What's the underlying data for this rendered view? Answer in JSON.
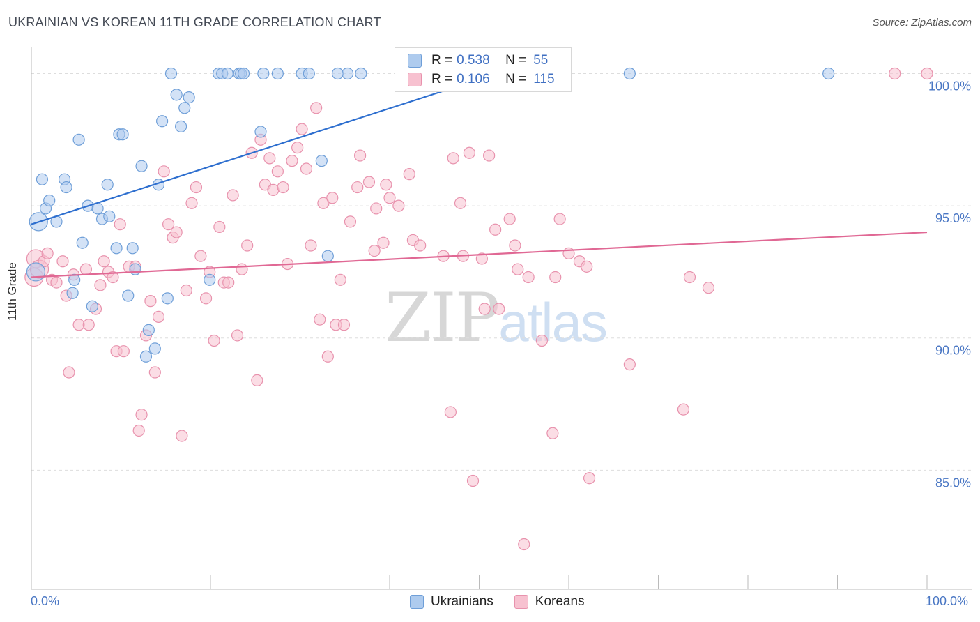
{
  "title": "UKRAINIAN VS KOREAN 11TH GRADE CORRELATION CHART",
  "source": "Source: ZipAtlas.com",
  "watermark": {
    "zip": "ZIP",
    "atlas": "atlas"
  },
  "colors": {
    "blue_fill": "#aecbee",
    "blue_stroke": "#6f9fd8",
    "blue_line": "#2e6fcf",
    "pink_fill": "#f7c1d0",
    "pink_stroke": "#e892ad",
    "pink_line": "#e06894",
    "grid": "#dddddd",
    "tick_label": "#4a77c4"
  },
  "legend": {
    "rows": [
      {
        "r_label": "R =",
        "r_value": "0.538",
        "n_label": "N =",
        "n_value": "55",
        "color": "#aecbee"
      },
      {
        "r_label": "R =",
        "r_value": "0.106",
        "n_label": "N =",
        "n_value": "115",
        "color": "#f7c1d0"
      }
    ],
    "bottom": [
      {
        "label": "Ukrainians",
        "color": "#aecbee"
      },
      {
        "label": "Koreans",
        "color": "#f7c1d0"
      }
    ]
  },
  "chart_data": {
    "type": "scatter",
    "title": "UKRAINIAN VS KOREAN 11TH GRADE CORRELATION CHART",
    "xlabel": "",
    "ylabel": "11th Grade",
    "xlim": [
      0,
      100
    ],
    "ylim": [
      80.5,
      101.2
    ],
    "x_tick_labels": [
      "0.0%",
      "100.0%"
    ],
    "y_ticks": [
      85,
      90,
      95,
      100
    ],
    "y_tick_labels": [
      "85.0%",
      "90.0%",
      "95.0%",
      "100.0%"
    ],
    "grid": true,
    "series": [
      {
        "name": "Ukrainians",
        "trend": {
          "x0": 0,
          "y0": 94.3,
          "x1": 52,
          "y1": 100.0
        },
        "points": [
          [
            0.5,
            92.5
          ],
          [
            0.8,
            94.4
          ],
          [
            1.2,
            96.0
          ],
          [
            1.6,
            94.9
          ],
          [
            2.0,
            95.2
          ],
          [
            2.8,
            94.4
          ],
          [
            3.7,
            96.0
          ],
          [
            3.9,
            95.7
          ],
          [
            4.6,
            91.7
          ],
          [
            4.8,
            92.2
          ],
          [
            5.3,
            97.5
          ],
          [
            5.7,
            93.6
          ],
          [
            6.3,
            95.0
          ],
          [
            6.8,
            91.2
          ],
          [
            7.4,
            94.9
          ],
          [
            7.9,
            94.5
          ],
          [
            8.5,
            95.8
          ],
          [
            8.7,
            94.6
          ],
          [
            9.5,
            93.4
          ],
          [
            9.8,
            97.7
          ],
          [
            10.2,
            97.7
          ],
          [
            10.8,
            91.6
          ],
          [
            11.3,
            93.4
          ],
          [
            11.6,
            92.6
          ],
          [
            12.3,
            96.5
          ],
          [
            12.8,
            89.3
          ],
          [
            13.1,
            90.3
          ],
          [
            13.8,
            89.6
          ],
          [
            14.2,
            95.8
          ],
          [
            14.6,
            98.2
          ],
          [
            15.2,
            91.5
          ],
          [
            15.6,
            100.0
          ],
          [
            16.2,
            99.2
          ],
          [
            16.7,
            98.0
          ],
          [
            17.1,
            98.7
          ],
          [
            17.6,
            99.1
          ],
          [
            19.9,
            92.2
          ],
          [
            20.9,
            100.0
          ],
          [
            21.3,
            100.0
          ],
          [
            21.9,
            100.0
          ],
          [
            23.2,
            100.0
          ],
          [
            23.4,
            100.0
          ],
          [
            23.7,
            100.0
          ],
          [
            25.6,
            97.8
          ],
          [
            25.9,
            100.0
          ],
          [
            27.5,
            100.0
          ],
          [
            30.2,
            100.0
          ],
          [
            31.0,
            100.0
          ],
          [
            32.4,
            96.7
          ],
          [
            33.1,
            93.1
          ],
          [
            34.2,
            100.0
          ],
          [
            35.3,
            100.0
          ],
          [
            36.8,
            100.0
          ],
          [
            66.8,
            100.0
          ],
          [
            89.0,
            100.0
          ]
        ]
      },
      {
        "name": "Koreans",
        "trend": {
          "x0": 0,
          "y0": 92.3,
          "x1": 100,
          "y1": 94.0
        },
        "points": [
          [
            0.3,
            92.3
          ],
          [
            0.5,
            93.0
          ],
          [
            0.9,
            92.6
          ],
          [
            1.4,
            92.9
          ],
          [
            1.8,
            93.2
          ],
          [
            2.3,
            92.2
          ],
          [
            2.8,
            92.1
          ],
          [
            3.5,
            92.9
          ],
          [
            3.9,
            91.6
          ],
          [
            4.2,
            88.7
          ],
          [
            4.7,
            92.4
          ],
          [
            5.3,
            90.5
          ],
          [
            6.1,
            92.6
          ],
          [
            6.4,
            90.5
          ],
          [
            7.2,
            91.1
          ],
          [
            7.7,
            92.0
          ],
          [
            8.1,
            92.9
          ],
          [
            8.6,
            92.5
          ],
          [
            9.1,
            92.3
          ],
          [
            9.5,
            89.5
          ],
          [
            9.9,
            94.3
          ],
          [
            10.3,
            89.5
          ],
          [
            10.9,
            92.7
          ],
          [
            11.6,
            92.7
          ],
          [
            12.0,
            86.5
          ],
          [
            12.3,
            87.1
          ],
          [
            12.8,
            90.1
          ],
          [
            13.3,
            91.4
          ],
          [
            13.8,
            88.7
          ],
          [
            14.2,
            90.8
          ],
          [
            14.8,
            96.3
          ],
          [
            15.3,
            94.3
          ],
          [
            15.8,
            93.8
          ],
          [
            16.2,
            94.0
          ],
          [
            16.8,
            86.3
          ],
          [
            17.3,
            91.8
          ],
          [
            17.9,
            95.1
          ],
          [
            18.4,
            95.7
          ],
          [
            18.9,
            93.1
          ],
          [
            19.5,
            91.5
          ],
          [
            19.9,
            92.5
          ],
          [
            20.4,
            89.9
          ],
          [
            21.0,
            94.2
          ],
          [
            21.5,
            92.1
          ],
          [
            22.0,
            92.1
          ],
          [
            22.5,
            95.4
          ],
          [
            23.0,
            90.1
          ],
          [
            23.5,
            92.6
          ],
          [
            24.1,
            93.5
          ],
          [
            24.6,
            97.0
          ],
          [
            25.2,
            88.4
          ],
          [
            25.6,
            97.5
          ],
          [
            26.1,
            95.8
          ],
          [
            26.6,
            96.8
          ],
          [
            27.0,
            95.6
          ],
          [
            27.5,
            96.3
          ],
          [
            28.1,
            95.7
          ],
          [
            28.6,
            92.8
          ],
          [
            29.1,
            96.7
          ],
          [
            29.7,
            97.2
          ],
          [
            30.2,
            97.9
          ],
          [
            30.7,
            96.4
          ],
          [
            31.2,
            93.5
          ],
          [
            31.8,
            98.7
          ],
          [
            32.2,
            90.7
          ],
          [
            32.6,
            95.1
          ],
          [
            33.1,
            89.3
          ],
          [
            33.6,
            95.3
          ],
          [
            34.0,
            90.5
          ],
          [
            34.5,
            92.2
          ],
          [
            34.9,
            90.5
          ],
          [
            35.6,
            94.4
          ],
          [
            36.4,
            95.7
          ],
          [
            36.7,
            96.9
          ],
          [
            37.7,
            95.9
          ],
          [
            38.3,
            93.3
          ],
          [
            38.5,
            94.9
          ],
          [
            39.3,
            93.6
          ],
          [
            39.6,
            95.8
          ],
          [
            40.0,
            95.3
          ],
          [
            41.0,
            95.0
          ],
          [
            42.2,
            96.2
          ],
          [
            42.6,
            93.7
          ],
          [
            43.4,
            93.5
          ],
          [
            46.0,
            93.1
          ],
          [
            46.8,
            87.2
          ],
          [
            47.1,
            96.8
          ],
          [
            47.9,
            95.1
          ],
          [
            48.2,
            93.1
          ],
          [
            48.9,
            97.0
          ],
          [
            49.3,
            84.6
          ],
          [
            50.3,
            93.0
          ],
          [
            50.6,
            91.1
          ],
          [
            51.1,
            96.9
          ],
          [
            51.8,
            94.1
          ],
          [
            52.2,
            91.1
          ],
          [
            53.4,
            94.5
          ],
          [
            54.0,
            93.5
          ],
          [
            54.3,
            92.6
          ],
          [
            55.0,
            82.2
          ],
          [
            55.5,
            92.3
          ],
          [
            57.0,
            89.9
          ],
          [
            58.2,
            86.4
          ],
          [
            58.5,
            92.3
          ],
          [
            59.0,
            94.5
          ],
          [
            60.0,
            93.2
          ],
          [
            61.2,
            92.9
          ],
          [
            62.0,
            92.7
          ],
          [
            62.3,
            84.7
          ],
          [
            66.8,
            89.0
          ],
          [
            72.8,
            87.3
          ],
          [
            73.5,
            92.3
          ],
          [
            75.6,
            91.9
          ],
          [
            100.0,
            100.0
          ],
          [
            96.4,
            100.0
          ]
        ]
      }
    ]
  }
}
